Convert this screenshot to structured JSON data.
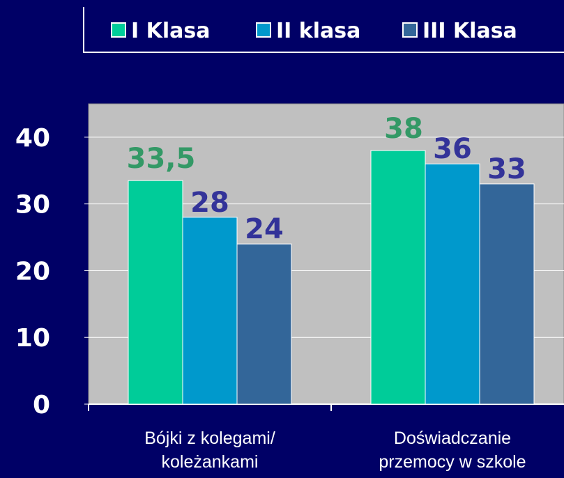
{
  "chart_data": {
    "type": "bar",
    "categories": [
      "Bójki z kolegami/\nkoleżankami",
      "Doświadczanie\nprzemocy w szkole"
    ],
    "series": [
      {
        "name": "I Klasa",
        "color": "#00cc99",
        "label_color": "#339966",
        "values": [
          33.5,
          38
        ],
        "value_labels": [
          "33,5",
          "38"
        ]
      },
      {
        "name": "II klasa",
        "color": "#0099cc",
        "label_color": "#333399",
        "values": [
          28,
          36
        ]
      },
      {
        "name": "III Klasa",
        "color": "#336699",
        "label_color": "#333399",
        "values": [
          24,
          33
        ]
      }
    ],
    "ylim": [
      0,
      45
    ],
    "yticks": [
      0,
      10,
      20,
      30,
      40
    ],
    "grid": true
  }
}
